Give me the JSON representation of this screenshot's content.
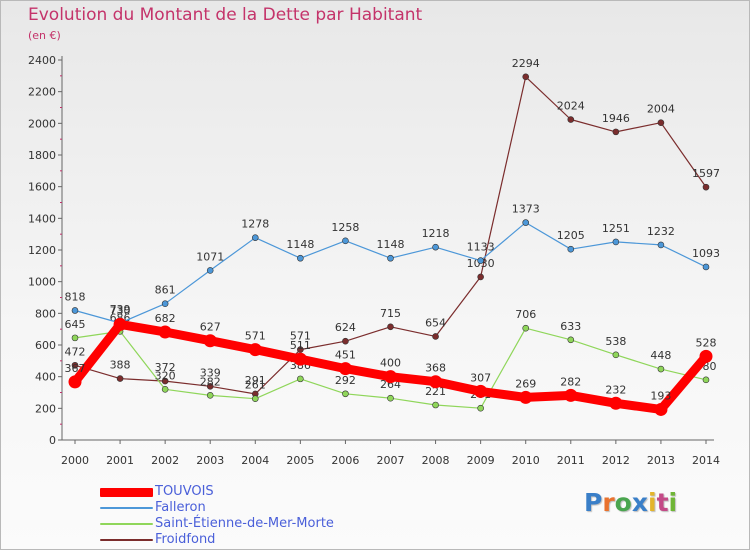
{
  "title": "Evolution du Montant de la Dette par Habitant",
  "subtitle": "(en €)",
  "logo": {
    "text": "Proxiti"
  },
  "chart_data": {
    "type": "line",
    "title": "Evolution du Montant de la Dette par Habitant",
    "subtitle": "(en €)",
    "x": [
      "2000",
      "2001",
      "2002",
      "2003",
      "2004",
      "2005",
      "2006",
      "2007",
      "2008",
      "2009",
      "2010",
      "2011",
      "2012",
      "2013",
      "2014"
    ],
    "ylim": [
      0,
      2400
    ],
    "yticks": [
      0,
      200,
      400,
      600,
      800,
      1000,
      1200,
      1400,
      1600,
      1800,
      2000,
      2200,
      2400
    ],
    "grid": false,
    "legend_placement": "bottom-left",
    "series": [
      {
        "name": "Froidfond",
        "color": "#7b2d2d",
        "values": [
          472,
          388,
          372,
          339,
          291,
          571,
          624,
          715,
          654,
          1030,
          2294,
          2024,
          1946,
          2004,
          1597
        ]
      },
      {
        "name": "Saint-Étienne-de-Mer-Morte",
        "color": "#8fd65a",
        "values": [
          645,
          686,
          320,
          282,
          261,
          386,
          292,
          264,
          221,
          201,
          706,
          633,
          538,
          448,
          380
        ]
      },
      {
        "name": "Falleron",
        "color": "#4c97d8",
        "values": [
          818,
          739,
          861,
          1071,
          1278,
          1148,
          1258,
          1148,
          1218,
          1133,
          1373,
          1205,
          1251,
          1232,
          1093
        ]
      },
      {
        "name": "TOUVOIS",
        "color": "#ff0000",
        "values": [
          367,
          730,
          682,
          627,
          571,
          511,
          451,
          400,
          368,
          307,
          269,
          282,
          232,
          193,
          528
        ]
      }
    ]
  }
}
